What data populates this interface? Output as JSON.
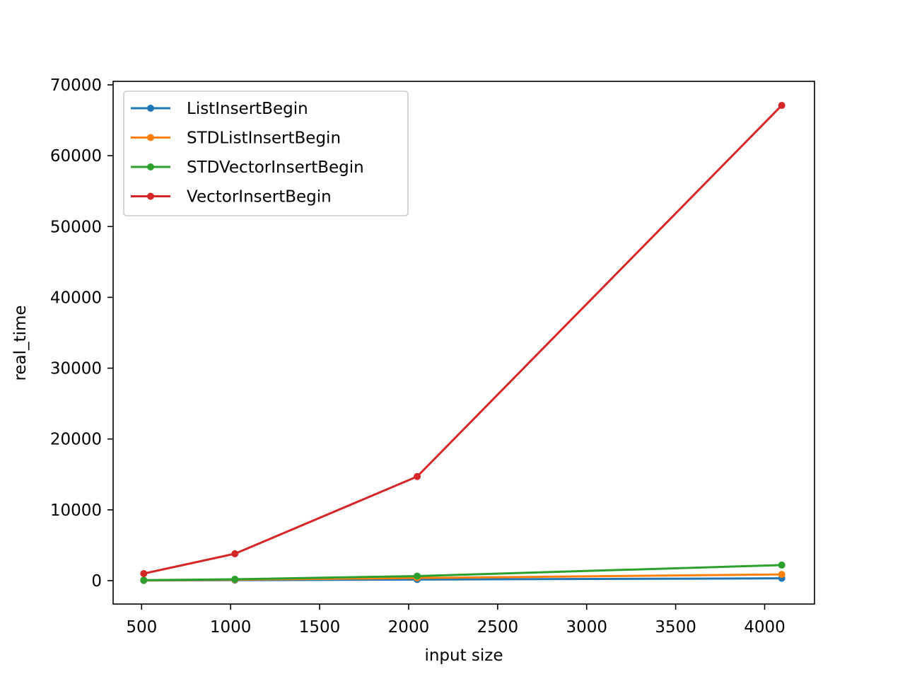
{
  "chart_data": {
    "type": "line",
    "title": "",
    "xlabel": "input size",
    "ylabel": "real_time",
    "x": [
      512,
      1024,
      2048,
      4096
    ],
    "xlim": [
      340,
      4280
    ],
    "ylim": [
      -3300,
      70500
    ],
    "xticks": [
      500,
      1000,
      1500,
      2000,
      2500,
      3000,
      3500,
      4000
    ],
    "yticks": [
      0,
      10000,
      20000,
      30000,
      40000,
      50000,
      60000,
      70000
    ],
    "grid": false,
    "legend": "top-left",
    "series": [
      {
        "name": "ListInsertBegin",
        "color": "#1f77b4",
        "values": [
          20,
          70,
          160,
          330
        ]
      },
      {
        "name": "STDListInsertBegin",
        "color": "#ff7f0e",
        "values": [
          50,
          130,
          380,
          880
        ]
      },
      {
        "name": "STDVectorInsertBegin",
        "color": "#2ca02c",
        "values": [
          70,
          200,
          650,
          2200
        ]
      },
      {
        "name": "VectorInsertBegin",
        "color": "#d62728",
        "values": [
          1000,
          3800,
          14700,
          67100
        ]
      }
    ]
  }
}
